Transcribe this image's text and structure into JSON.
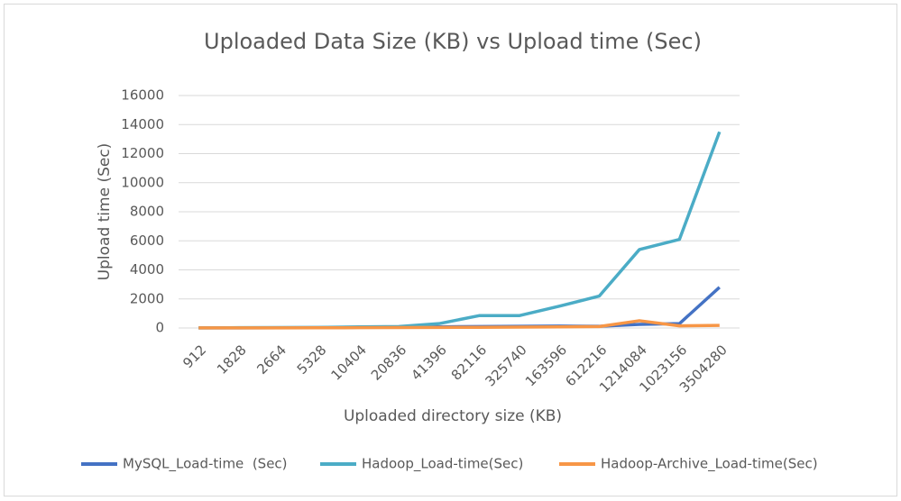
{
  "chart_data": {
    "type": "line",
    "title": "Uploaded Data Size (KB) vs Upload time (Sec)",
    "x_label": "Uploaded directory size (KB)",
    "y_label": "Upload time (Sec)",
    "categories": [
      "912",
      "1828",
      "2664",
      "5328",
      "10404",
      "20836",
      "41396",
      "82116",
      "325740",
      "163596",
      "612216",
      "1214084",
      "1023156",
      "3504280"
    ],
    "series": [
      {
        "name": "MySQL_Load-time  (Sec)",
        "color": "#4472c4",
        "values": [
          5,
          10,
          15,
          20,
          50,
          60,
          80,
          100,
          120,
          130,
          120,
          250,
          300,
          2800
        ]
      },
      {
        "name": "Hadoop_Load-time(Sec)",
        "color": "#4bacc6",
        "values": [
          10,
          20,
          30,
          40,
          80,
          100,
          300,
          850,
          850,
          1500,
          2200,
          5400,
          6100,
          13500
        ]
      },
      {
        "name": "Hadoop-Archive_Load-time(Sec)",
        "color": "#f79646",
        "values": [
          10,
          10,
          10,
          15,
          20,
          30,
          40,
          50,
          60,
          80,
          100,
          500,
          150,
          180
        ]
      }
    ],
    "ylim": [
      0,
      16000
    ],
    "yticks": [
      0,
      2000,
      4000,
      6000,
      8000,
      10000,
      12000,
      14000,
      16000
    ],
    "grid": true,
    "legend": "bottom"
  }
}
